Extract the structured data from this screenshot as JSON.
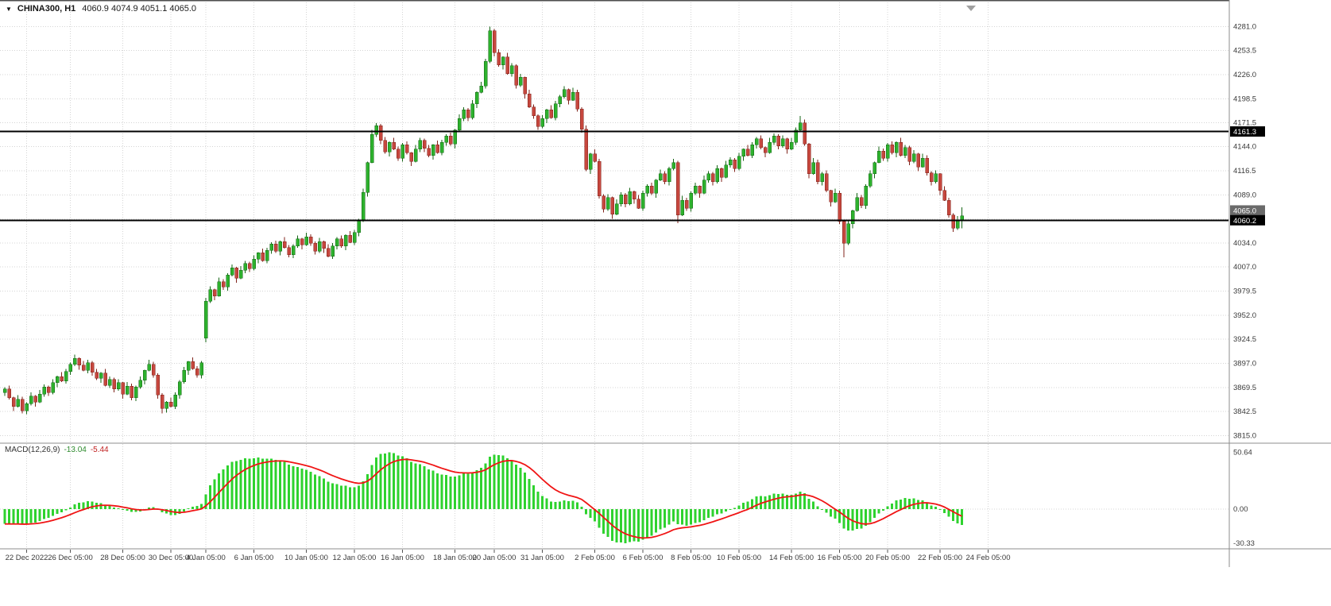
{
  "header": {
    "dropdown_icon": "▼",
    "symbol_period": "CHINA300, H1",
    "ohlc": "4060.9 4074.9 4051.1 4065.0"
  },
  "colors": {
    "bull": "#2db12d",
    "bull_edge": "#156615",
    "bear": "#c6473e",
    "bear_edge": "#80231b",
    "grid": "#d4d4d4",
    "hline": "#000000",
    "current_tag": "#6a6a6a",
    "macd_histogram": "#2ed22e",
    "macd_signal": "#f01414",
    "axis_text": "#3a3a3a",
    "separator": "#8c8c8c",
    "window_top_border": "#4d4d4d"
  },
  "chart_data": {
    "type": "candlestick",
    "symbol": "CHINA300",
    "timeframe": "H1",
    "last_ohlc": {
      "open": 4060.9,
      "high": 4074.9,
      "low": 4051.1,
      "close": 4065.0
    },
    "price_axis_ticks": [
      4281.0,
      4253.5,
      4226.0,
      4198.5,
      4171.5,
      4144.0,
      4116.5,
      4089.0,
      4061.5,
      4034.0,
      4007.0,
      3979.5,
      3952.0,
      3924.5,
      3897.0,
      3869.5,
      3842.5,
      3815.0
    ],
    "price_lines": [
      {
        "price": 4161.3
      },
      {
        "price": 4060.2
      }
    ],
    "current_price": {
      "price": 4065.0
    },
    "axes": {
      "price_min": 3808,
      "price_max": 4293
    },
    "time_labels": [
      {
        "text": "22 Dec 2022",
        "index": 5
      },
      {
        "text": "26 Dec 05:00",
        "index": 15
      },
      {
        "text": "28 Dec 05:00",
        "index": 27
      },
      {
        "text": "30 Dec 05:00",
        "index": 38
      },
      {
        "text": "4 Jan 05:00",
        "index": 46
      },
      {
        "text": "6 Jan 05:00",
        "index": 57
      },
      {
        "text": "10 Jan 05:00",
        "index": 69
      },
      {
        "text": "12 Jan 05:00",
        "index": 80
      },
      {
        "text": "16 Jan 05:00",
        "index": 91
      },
      {
        "text": "18 Jan 05:00",
        "index": 103
      },
      {
        "text": "20 Jan 05:00",
        "index": 112
      },
      {
        "text": "31 Jan 05:00",
        "index": 123
      },
      {
        "text": "2 Feb 05:00",
        "index": 135
      },
      {
        "text": "6 Feb 05:00",
        "index": 146
      },
      {
        "text": "8 Feb 05:00",
        "index": 157
      },
      {
        "text": "10 Feb 05:00",
        "index": 168
      },
      {
        "text": "14 Feb 05:00",
        "index": 180
      },
      {
        "text": "16 Feb 05:00",
        "index": 191
      },
      {
        "text": "20 Feb 05:00",
        "index": 202
      },
      {
        "text": "22 Feb 05:00",
        "index": 214
      },
      {
        "text": "24 Feb 05:00",
        "index": 225
      }
    ],
    "macd": {
      "label": "MACD(12,26,9)",
      "value_main": "-13.04",
      "value_signal": "-5.44",
      "fast": 12,
      "slow": 26,
      "signal_period": 9,
      "scale_max": 50.64,
      "scale_zero": 0.0,
      "scale_min": -30.33
    },
    "candles": [
      [
        3864,
        3870,
        3860,
        3868
      ],
      [
        3868,
        3872,
        3856,
        3858
      ],
      [
        3858,
        3859,
        3843,
        3848
      ],
      [
        3848,
        3861,
        3847,
        3856
      ],
      [
        3856,
        3859,
        3840,
        3843
      ],
      [
        3843,
        3853,
        3839,
        3851
      ],
      [
        3851,
        3864,
        3849,
        3860
      ],
      [
        3860,
        3861,
        3848,
        3853
      ],
      [
        3853,
        3867,
        3852,
        3862
      ],
      [
        3862,
        3873,
        3859,
        3870
      ],
      [
        3870,
        3872,
        3860,
        3864
      ],
      [
        3864,
        3879,
        3862,
        3875
      ],
      [
        3875,
        3883,
        3870,
        3882
      ],
      [
        3882,
        3887,
        3876,
        3877
      ],
      [
        3877,
        3891,
        3874,
        3888
      ],
      [
        3888,
        3898,
        3884,
        3896
      ],
      [
        3896,
        3907,
        3894,
        3903
      ],
      [
        3903,
        3904,
        3890,
        3895
      ],
      [
        3895,
        3900,
        3888,
        3889
      ],
      [
        3889,
        3901,
        3886,
        3898
      ],
      [
        3898,
        3900,
        3883,
        3887
      ],
      [
        3887,
        3891,
        3878,
        3880
      ],
      [
        3880,
        3887,
        3875,
        3886
      ],
      [
        3886,
        3891,
        3871,
        3872
      ],
      [
        3872,
        3882,
        3869,
        3879
      ],
      [
        3879,
        3881,
        3864,
        3868
      ],
      [
        3868,
        3879,
        3866,
        3875
      ],
      [
        3875,
        3876,
        3857,
        3862
      ],
      [
        3862,
        3876,
        3861,
        3871
      ],
      [
        3871,
        3874,
        3855,
        3858
      ],
      [
        3858,
        3872,
        3854,
        3870
      ],
      [
        3870,
        3882,
        3868,
        3878
      ],
      [
        3878,
        3890,
        3873,
        3889
      ],
      [
        3889,
        3901,
        3888,
        3896
      ],
      [
        3896,
        3899,
        3881,
        3884
      ],
      [
        3884,
        3886,
        3857,
        3861
      ],
      [
        3861,
        3863,
        3840,
        3846
      ],
      [
        3846,
        3854,
        3841,
        3853
      ],
      [
        3853,
        3858,
        3847,
        3848
      ],
      [
        3848,
        3864,
        3845,
        3861
      ],
      [
        3861,
        3878,
        3857,
        3876
      ],
      [
        3876,
        3893,
        3874,
        3889
      ],
      [
        3889,
        3900,
        3884,
        3899
      ],
      [
        3899,
        3904,
        3890,
        3891
      ],
      [
        3891,
        3894,
        3881,
        3884
      ],
      [
        3884,
        3900,
        3880,
        3898
      ],
      [
        3926,
        3972,
        3921,
        3968
      ],
      [
        3968,
        3985,
        3966,
        3981
      ],
      [
        3981,
        3982,
        3969,
        3974
      ],
      [
        3974,
        3995,
        3973,
        3990
      ],
      [
        3990,
        3993,
        3981,
        3984
      ],
      [
        3984,
        4000,
        3980,
        3998
      ],
      [
        3998,
        4010,
        3996,
        4006
      ],
      [
        4006,
        4007,
        3989,
        3994
      ],
      [
        3994,
        4008,
        3993,
        4003
      ],
      [
        4003,
        4014,
        4000,
        4011
      ],
      [
        4011,
        4013,
        4001,
        4005
      ],
      [
        4005,
        4020,
        4003,
        4016
      ],
      [
        4016,
        4024,
        4011,
        4023
      ],
      [
        4023,
        4028,
        4013,
        4014
      ],
      [
        4014,
        4029,
        4011,
        4026
      ],
      [
        4026,
        4035,
        4022,
        4033
      ],
      [
        4033,
        4037,
        4023,
        4025
      ],
      [
        4025,
        4037,
        4020,
        4036
      ],
      [
        4036,
        4041,
        4028,
        4029
      ],
      [
        4029,
        4032,
        4018,
        4021
      ],
      [
        4021,
        4033,
        4017,
        4031
      ],
      [
        4031,
        4043,
        4029,
        4039
      ],
      [
        4039,
        4040,
        4027,
        4032
      ],
      [
        4032,
        4046,
        4031,
        4041
      ],
      [
        4041,
        4044,
        4031,
        4034
      ],
      [
        4034,
        4036,
        4021,
        4025
      ],
      [
        4025,
        4040,
        4023,
        4036
      ],
      [
        4036,
        4037,
        4023,
        4028
      ],
      [
        4028,
        4033,
        4018,
        4019
      ],
      [
        4019,
        4034,
        4016,
        4031
      ],
      [
        4031,
        4041,
        4027,
        4039
      ],
      [
        4039,
        4043,
        4029,
        4031
      ],
      [
        4031,
        4044,
        4026,
        4043
      ],
      [
        4043,
        4048,
        4034,
        4035
      ],
      [
        4035,
        4049,
        4032,
        4046
      ],
      [
        4046,
        4062,
        4042,
        4060
      ],
      [
        4060,
        4096,
        4058,
        4092
      ],
      [
        4092,
        4127,
        4087,
        4126
      ],
      [
        4126,
        4163,
        4125,
        4158
      ],
      [
        4158,
        4171,
        4155,
        4168
      ],
      [
        4168,
        4170,
        4147,
        4151
      ],
      [
        4151,
        4155,
        4136,
        4138
      ],
      [
        4138,
        4150,
        4133,
        4149
      ],
      [
        4149,
        4154,
        4140,
        4141
      ],
      [
        4141,
        4144,
        4128,
        4131
      ],
      [
        4131,
        4148,
        4127,
        4146
      ],
      [
        4146,
        4150,
        4135,
        4137
      ],
      [
        4137,
        4138,
        4122,
        4127
      ],
      [
        4127,
        4146,
        4126,
        4141
      ],
      [
        4141,
        4154,
        4138,
        4151
      ],
      [
        4151,
        4153,
        4138,
        4142
      ],
      [
        4142,
        4146,
        4132,
        4134
      ],
      [
        4134,
        4147,
        4129,
        4146
      ],
      [
        4146,
        4151,
        4136,
        4137
      ],
      [
        4137,
        4152,
        4134,
        4149
      ],
      [
        4149,
        4158,
        4145,
        4156
      ],
      [
        4156,
        4160,
        4145,
        4147
      ],
      [
        4147,
        4164,
        4142,
        4163
      ],
      [
        4163,
        4181,
        4162,
        4176
      ],
      [
        4176,
        4189,
        4173,
        4186
      ],
      [
        4186,
        4188,
        4173,
        4177
      ],
      [
        4177,
        4197,
        4175,
        4193
      ],
      [
        4193,
        4207,
        4188,
        4206
      ],
      [
        4206,
        4218,
        4205,
        4213
      ],
      [
        4213,
        4244,
        4210,
        4241
      ],
      [
        4241,
        4281,
        4239,
        4276
      ],
      [
        4276,
        4278,
        4247,
        4251
      ],
      [
        4251,
        4255,
        4235,
        4237
      ],
      [
        4237,
        4247,
        4232,
        4246
      ],
      [
        4246,
        4251,
        4226,
        4227
      ],
      [
        4227,
        4239,
        4224,
        4236
      ],
      [
        4236,
        4238,
        4210,
        4214
      ],
      [
        4214,
        4227,
        4212,
        4223
      ],
      [
        4223,
        4224,
        4199,
        4204
      ],
      [
        4204,
        4209,
        4188,
        4189
      ],
      [
        4189,
        4192,
        4176,
        4179
      ],
      [
        4179,
        4181,
        4163,
        4167
      ],
      [
        4167,
        4180,
        4165,
        4176
      ],
      [
        4176,
        4187,
        4171,
        4186
      ],
      [
        4186,
        4191,
        4176,
        4177
      ],
      [
        4177,
        4196,
        4174,
        4193
      ],
      [
        4193,
        4203,
        4189,
        4201
      ],
      [
        4201,
        4213,
        4199,
        4209
      ],
      [
        4209,
        4210,
        4192,
        4197
      ],
      [
        4197,
        4211,
        4196,
        4206
      ],
      [
        4206,
        4209,
        4184,
        4187
      ],
      [
        4187,
        4189,
        4160,
        4164
      ],
      [
        4164,
        4168,
        4116,
        4118
      ],
      [
        4118,
        4137,
        4113,
        4136
      ],
      [
        4136,
        4141,
        4126,
        4127
      ],
      [
        4127,
        4130,
        4085,
        4088
      ],
      [
        4088,
        4090,
        4069,
        4073
      ],
      [
        4073,
        4090,
        4071,
        4086
      ],
      [
        4086,
        4087,
        4062,
        4067
      ],
      [
        4067,
        4084,
        4066,
        4079
      ],
      [
        4079,
        4092,
        4076,
        4089
      ],
      [
        4089,
        4091,
        4075,
        4079
      ],
      [
        4079,
        4097,
        4077,
        4093
      ],
      [
        4093,
        4094,
        4079,
        4084
      ],
      [
        4084,
        4089,
        4073,
        4074
      ],
      [
        4074,
        4094,
        4071,
        4091
      ],
      [
        4091,
        4101,
        4087,
        4099
      ],
      [
        4099,
        4103,
        4089,
        4091
      ],
      [
        4091,
        4107,
        4086,
        4106
      ],
      [
        4106,
        4118,
        4105,
        4113
      ],
      [
        4113,
        4116,
        4101,
        4104
      ],
      [
        4104,
        4121,
        4100,
        4119
      ],
      [
        4119,
        4130,
        4117,
        4126
      ],
      [
        4126,
        4128,
        4057,
        4066
      ],
      [
        4066,
        4088,
        4065,
        4083
      ],
      [
        4083,
        4086,
        4071,
        4074
      ],
      [
        4074,
        4093,
        4070,
        4091
      ],
      [
        4091,
        4103,
        4089,
        4099
      ],
      [
        4099,
        4100,
        4086,
        4091
      ],
      [
        4091,
        4111,
        4090,
        4106
      ],
      [
        4106,
        4116,
        4103,
        4113
      ],
      [
        4113,
        4115,
        4100,
        4104
      ],
      [
        4104,
        4123,
        4102,
        4119
      ],
      [
        4119,
        4120,
        4104,
        4109
      ],
      [
        4109,
        4128,
        4108,
        4123
      ],
      [
        4123,
        4132,
        4120,
        4129
      ],
      [
        4129,
        4131,
        4115,
        4119
      ],
      [
        4119,
        4137,
        4117,
        4133
      ],
      [
        4133,
        4142,
        4128,
        4141
      ],
      [
        4141,
        4146,
        4133,
        4134
      ],
      [
        4134,
        4149,
        4131,
        4146
      ],
      [
        4146,
        4155,
        4142,
        4153
      ],
      [
        4153,
        4157,
        4141,
        4143
      ],
      [
        4143,
        4144,
        4132,
        4137
      ],
      [
        4137,
        4154,
        4136,
        4149
      ],
      [
        4149,
        4159,
        4146,
        4156
      ],
      [
        4156,
        4158,
        4141,
        4145
      ],
      [
        4145,
        4157,
        4143,
        4153
      ],
      [
        4153,
        4154,
        4136,
        4141
      ],
      [
        4141,
        4154,
        4140,
        4149
      ],
      [
        4149,
        4166,
        4146,
        4163
      ],
      [
        4163,
        4179,
        4161,
        4171
      ],
      [
        4171,
        4175,
        4145,
        4147
      ],
      [
        4147,
        4148,
        4108,
        4113
      ],
      [
        4113,
        4131,
        4112,
        4126
      ],
      [
        4126,
        4129,
        4101,
        4104
      ],
      [
        4104,
        4115,
        4100,
        4113
      ],
      [
        4113,
        4117,
        4092,
        4094
      ],
      [
        4094,
        4095,
        4076,
        4081
      ],
      [
        4081,
        4096,
        4080,
        4091
      ],
      [
        4091,
        4094,
        4056,
        4059
      ],
      [
        4059,
        4061,
        4018,
        4034
      ],
      [
        4034,
        4060,
        4032,
        4056
      ],
      [
        4056,
        4072,
        4051,
        4071
      ],
      [
        4071,
        4091,
        4070,
        4086
      ],
      [
        4086,
        4089,
        4074,
        4077
      ],
      [
        4077,
        4101,
        4073,
        4099
      ],
      [
        4099,
        4117,
        4097,
        4113
      ],
      [
        4113,
        4127,
        4108,
        4126
      ],
      [
        4126,
        4144,
        4125,
        4139
      ],
      [
        4139,
        4142,
        4128,
        4131
      ],
      [
        4131,
        4148,
        4127,
        4146
      ],
      [
        4146,
        4150,
        4135,
        4137
      ],
      [
        4137,
        4150,
        4132,
        4149
      ],
      [
        4149,
        4154,
        4133,
        4134
      ],
      [
        4134,
        4146,
        4131,
        4143
      ],
      [
        4143,
        4145,
        4123,
        4127
      ],
      [
        4127,
        4140,
        4125,
        4136
      ],
      [
        4136,
        4137,
        4116,
        4121
      ],
      [
        4121,
        4136,
        4120,
        4131
      ],
      [
        4131,
        4134,
        4111,
        4114
      ],
      [
        4114,
        4116,
        4100,
        4104
      ],
      [
        4104,
        4117,
        4102,
        4113
      ],
      [
        4113,
        4114,
        4089,
        4094
      ],
      [
        4094,
        4099,
        4082,
        4083
      ],
      [
        4083,
        4086,
        4063,
        4066
      ],
      [
        4066,
        4068,
        4047,
        4051
      ],
      [
        4051,
        4064.9,
        4049,
        4060.9
      ],
      [
        4060.9,
        4074.9,
        4051.1,
        4065.0
      ]
    ]
  }
}
